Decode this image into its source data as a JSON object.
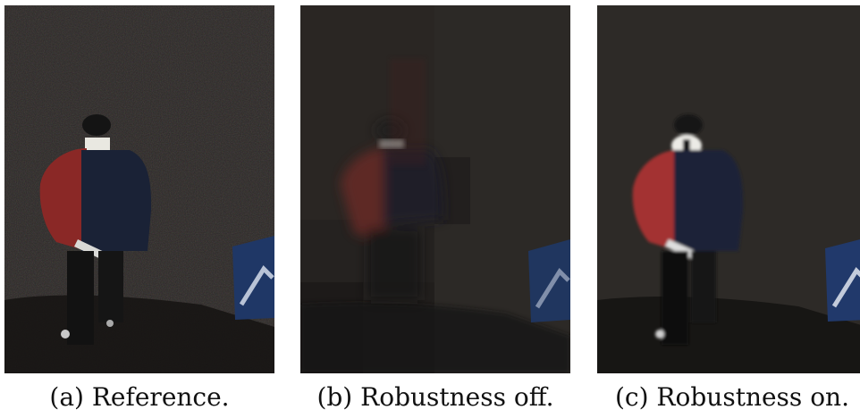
{
  "figure": {
    "panels": [
      {
        "caption": "(a) Reference."
      },
      {
        "caption": "(b) Robustness off."
      },
      {
        "caption": "(c) Robustness on."
      }
    ]
  }
}
